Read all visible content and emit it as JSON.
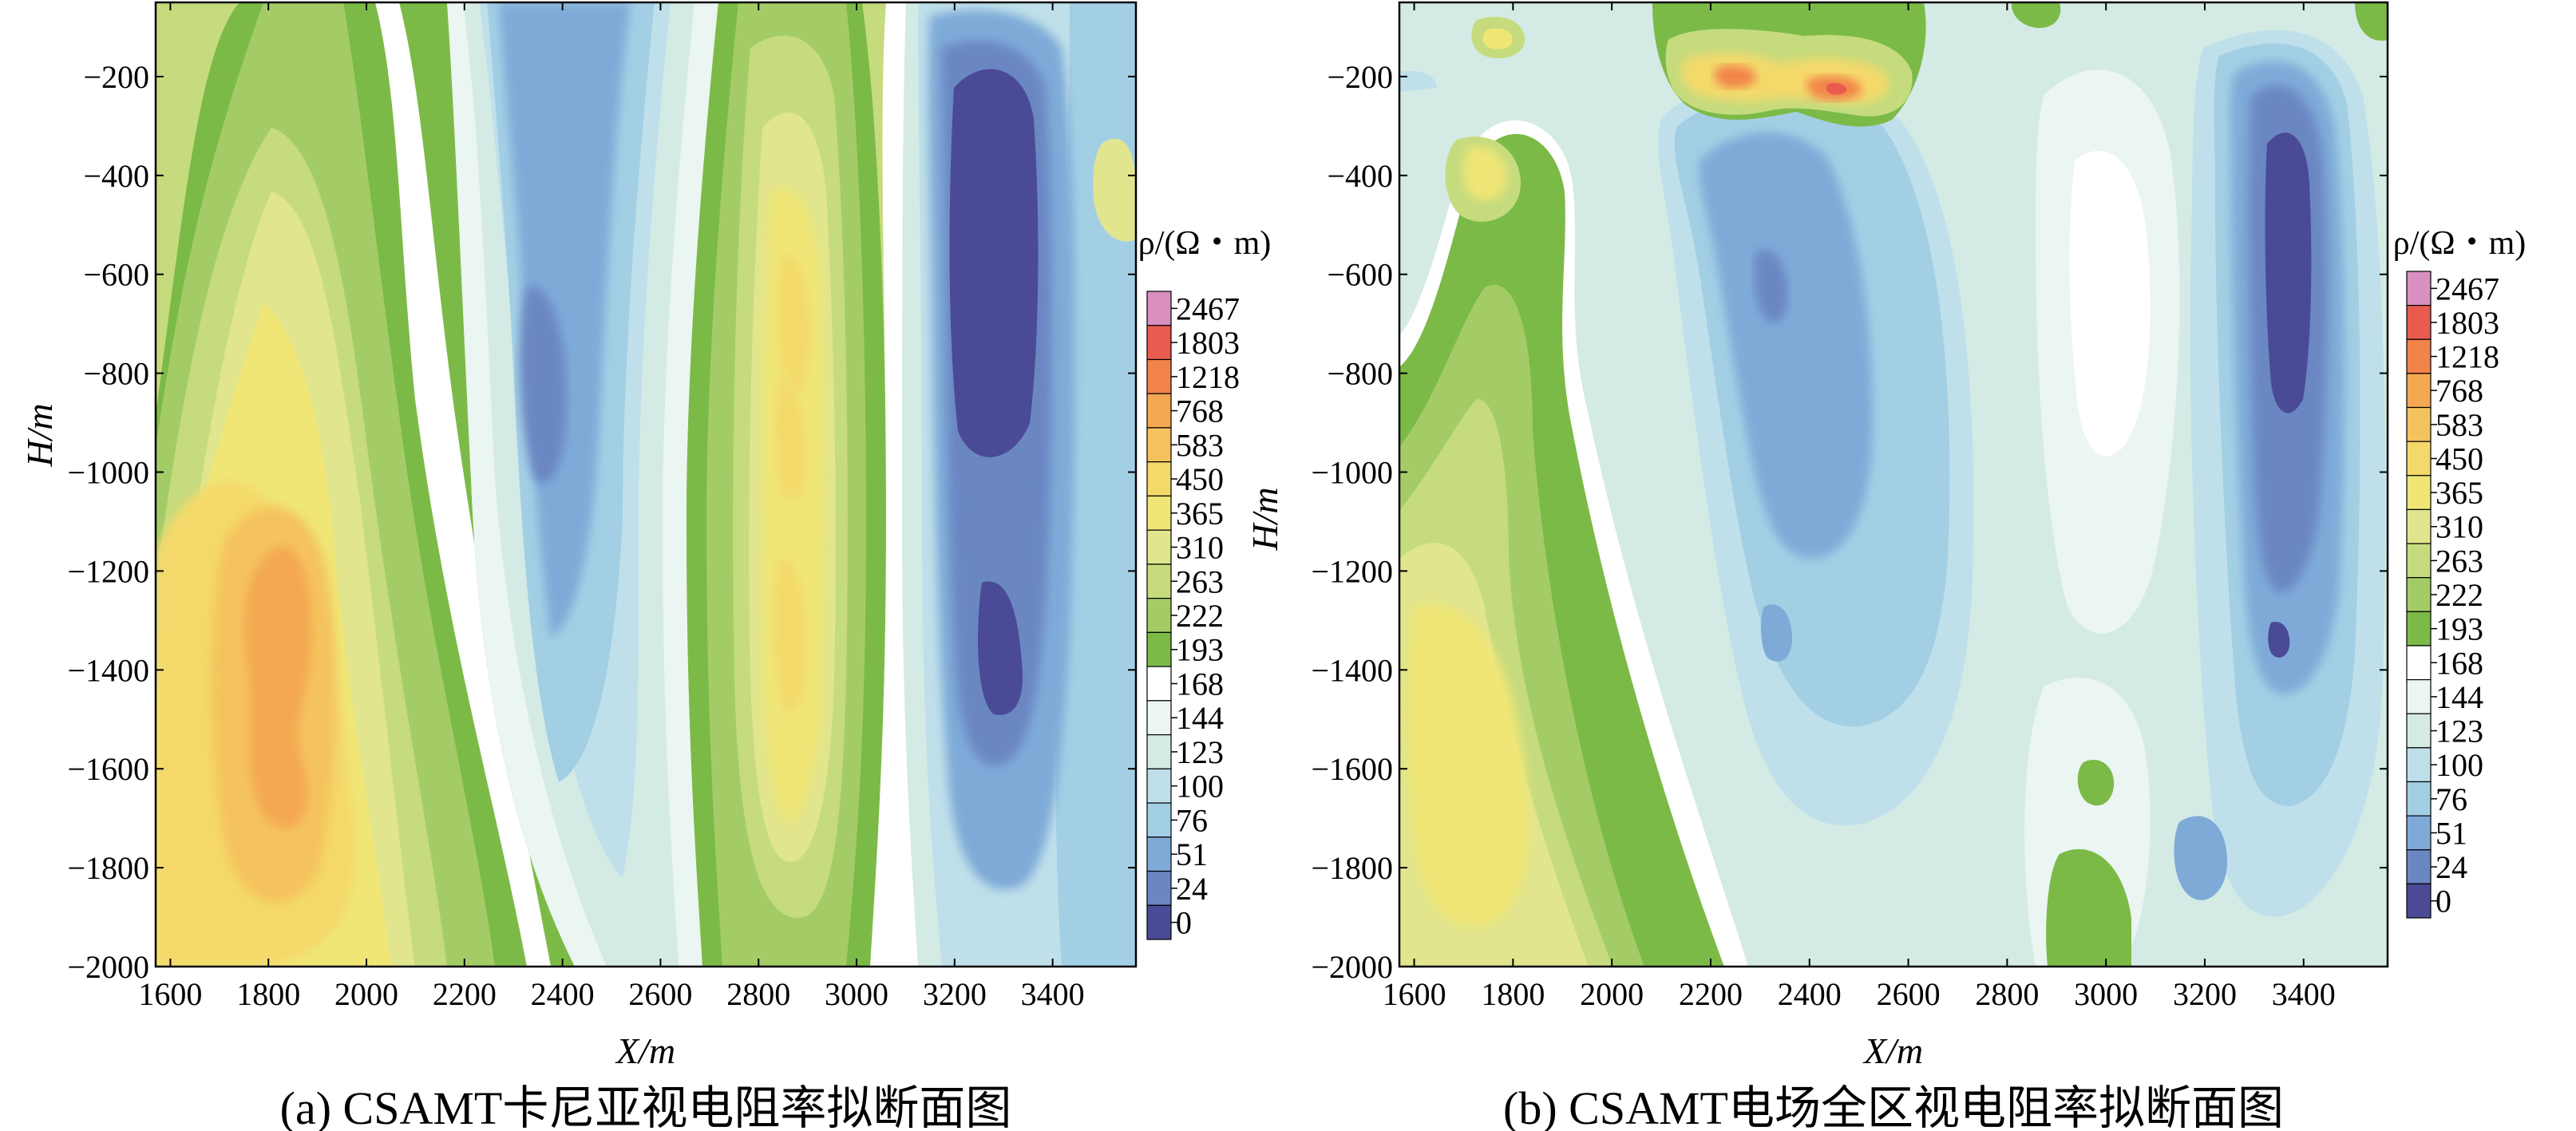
{
  "chart_data": [
    {
      "type": "heatmap",
      "panel": "(a)",
      "caption": "(a) CSAMT卡尼亚视电阻率拟断面图",
      "xlabel": "X/m",
      "ylabel": "H/m",
      "xlim": [
        1570,
        3570
      ],
      "ylim": [
        -2000,
        -50
      ],
      "xticks": [
        1600,
        1800,
        2000,
        2200,
        2400,
        2600,
        2800,
        3000,
        3200,
        3400
      ],
      "yticks": [
        -200,
        -400,
        -600,
        -800,
        -1000,
        -1200,
        -1400,
        -1600,
        -1800,
        -2000
      ],
      "colorbar_title": "ρ/(Ω・m)",
      "colorbar_levels": [
        0,
        24,
        51,
        76,
        100,
        123,
        144,
        168,
        193,
        222,
        263,
        310,
        365,
        450,
        583,
        768,
        1218,
        1803,
        2467
      ],
      "colorbar_colors": [
        "#4a4a96",
        "#6b87c2",
        "#7faad8",
        "#a3cfe5",
        "#bfe0ea",
        "#d4eae5",
        "#ebf5f2",
        "#ffffff",
        "#7cba48",
        "#a3cc66",
        "#c5db7e",
        "#e1e58e",
        "#efe676",
        "#f4d96a",
        "#f5c35d",
        "#f4a851",
        "#f2844a",
        "#ea5b4f",
        "#d98fbf"
      ],
      "features": [
        {
          "kind": "low",
          "x_center": 3270,
          "h_range": [
            -150,
            -1450
          ],
          "min_value": 0
        },
        {
          "kind": "low",
          "x_center": 2350,
          "h_range": [
            -50,
            -1700
          ],
          "min_value": 51
        },
        {
          "kind": "high",
          "x_center": 1820,
          "h_range": [
            -1100,
            -1800
          ],
          "max_value": 768
        },
        {
          "kind": "high",
          "x_center": 2880,
          "h_range": [
            -250,
            -1800
          ],
          "max_value": 450
        }
      ]
    },
    {
      "type": "heatmap",
      "panel": "(b)",
      "caption": "(b) CSAMT电场全区视电阻率拟断面图",
      "xlabel": "X/m",
      "ylabel": "H/m",
      "xlim": [
        1570,
        3570
      ],
      "ylim": [
        -2000,
        -50
      ],
      "xticks": [
        1600,
        1800,
        2000,
        2200,
        2400,
        2600,
        2800,
        3000,
        3200,
        3400
      ],
      "yticks": [
        -200,
        -400,
        -600,
        -800,
        -1000,
        -1200,
        -1400,
        -1600,
        -1800,
        -2000
      ],
      "colorbar_title": "ρ/(Ω・m)",
      "colorbar_levels": [
        0,
        24,
        51,
        76,
        100,
        123,
        144,
        168,
        193,
        222,
        263,
        310,
        365,
        450,
        583,
        768,
        1218,
        1803,
        2467
      ],
      "colorbar_colors": [
        "#4a4a96",
        "#6b87c2",
        "#7faad8",
        "#a3cfe5",
        "#bfe0ea",
        "#d4eae5",
        "#ebf5f2",
        "#ffffff",
        "#7cba48",
        "#a3cc66",
        "#c5db7e",
        "#e1e58e",
        "#efe676",
        "#f4d96a",
        "#f5c35d",
        "#f4a851",
        "#f2844a",
        "#ea5b4f",
        "#d98fbf"
      ],
      "features": [
        {
          "kind": "low",
          "x_center": 3330,
          "h_range": [
            -200,
            -1450
          ],
          "min_value": 0
        },
        {
          "kind": "low",
          "x_center": 2450,
          "h_range": [
            -300,
            -1200
          ],
          "min_value": 51
        },
        {
          "kind": "high",
          "x_center": 1850,
          "h_range": [
            -1200,
            -1900
          ],
          "max_value": 365
        },
        {
          "kind": "high",
          "x_center": 2500,
          "h_range": [
            -150,
            -300
          ],
          "max_value": 1803
        }
      ]
    }
  ]
}
